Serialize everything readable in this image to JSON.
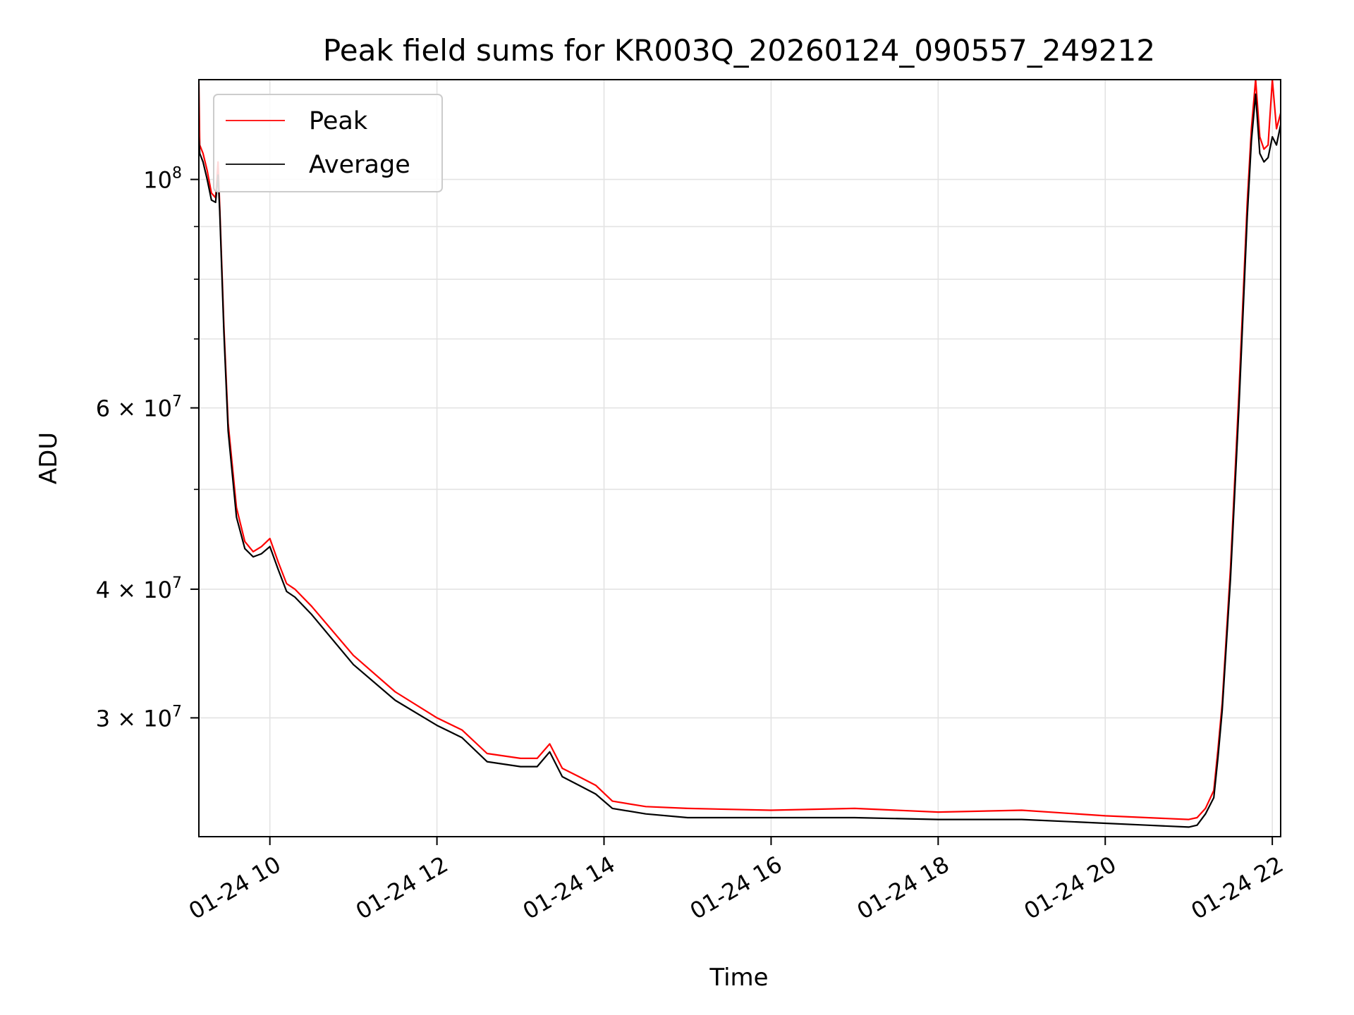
{
  "chart_data": {
    "type": "line",
    "title": "Peak field sums for KR003Q_20260124_090557_249212",
    "xlabel": "Time",
    "ylabel": "ADU",
    "xlim": [
      9.15,
      22.1
    ],
    "ylim": [
      23000000,
      125000000
    ],
    "yscale": "log",
    "grid": true,
    "legend": "top-left",
    "x_ticks": [
      {
        "value": 10,
        "label": "01-24 10"
      },
      {
        "value": 12,
        "label": "01-24 12"
      },
      {
        "value": 14,
        "label": "01-24 14"
      },
      {
        "value": 16,
        "label": "01-24 16"
      },
      {
        "value": 18,
        "label": "01-24 18"
      },
      {
        "value": 20,
        "label": "01-24 20"
      },
      {
        "value": 22,
        "label": "01-24 22"
      }
    ],
    "y_ticks": [
      {
        "value": 100000000,
        "base": "10",
        "exp": "8"
      },
      {
        "value": 60000000,
        "base": "6 × 10",
        "exp": "7"
      },
      {
        "value": 40000000,
        "base": "4 × 10",
        "exp": "7"
      },
      {
        "value": 30000000,
        "base": "3 × 10",
        "exp": "7"
      }
    ],
    "y_minor_ticks": [
      50000000,
      70000000,
      80000000,
      90000000
    ],
    "series": [
      {
        "name": "Peak",
        "color": "#ff0000",
        "x": [
          9.15,
          9.16,
          9.2,
          9.25,
          9.3,
          9.35,
          9.38,
          9.4,
          9.45,
          9.5,
          9.6,
          9.7,
          9.8,
          9.9,
          10.0,
          10.1,
          10.2,
          10.3,
          10.5,
          11.0,
          11.5,
          12.0,
          12.3,
          12.6,
          13.0,
          13.2,
          13.35,
          13.5,
          13.7,
          13.9,
          14.1,
          14.5,
          15.0,
          16.0,
          17.0,
          18.0,
          19.0,
          20.0,
          20.5,
          21.0,
          21.1,
          21.2,
          21.3,
          21.35,
          21.4,
          21.5,
          21.6,
          21.7,
          21.75,
          21.8,
          21.85,
          21.9,
          21.95,
          22.0,
          22.05,
          22.1
        ],
        "y": [
          124000000,
          108000000,
          106000000,
          102000000,
          97000000,
          96000000,
          104000000,
          94000000,
          72000000,
          58000000,
          48000000,
          44500000,
          43500000,
          44000000,
          44800000,
          42500000,
          40500000,
          40000000,
          38500000,
          34500000,
          31800000,
          30000000,
          29200000,
          27700000,
          27400000,
          27400000,
          28300000,
          26800000,
          26300000,
          25800000,
          24900000,
          24600000,
          24500000,
          24400000,
          24500000,
          24300000,
          24400000,
          24100000,
          24000000,
          23900000,
          24000000,
          24500000,
          25500000,
          28000000,
          31000000,
          42000000,
          62000000,
          95000000,
          112000000,
          125000000,
          110000000,
          107000000,
          108000000,
          125000000,
          112000000,
          116000000
        ]
      },
      {
        "name": "Average",
        "color": "#000000",
        "x": [
          9.15,
          9.16,
          9.2,
          9.25,
          9.3,
          9.35,
          9.38,
          9.4,
          9.45,
          9.5,
          9.6,
          9.7,
          9.8,
          9.9,
          10.0,
          10.1,
          10.2,
          10.3,
          10.5,
          11.0,
          11.5,
          12.0,
          12.3,
          12.6,
          13.0,
          13.2,
          13.35,
          13.5,
          13.7,
          13.9,
          14.1,
          14.5,
          15.0,
          16.0,
          17.0,
          18.0,
          19.0,
          20.0,
          20.5,
          21.0,
          21.1,
          21.2,
          21.3,
          21.35,
          21.4,
          21.5,
          21.6,
          21.7,
          21.75,
          21.8,
          21.85,
          21.9,
          21.95,
          22.0,
          22.05,
          22.1
        ],
        "y": [
          110000000,
          106000000,
          104000000,
          100000000,
          95500000,
          95000000,
          101000000,
          93000000,
          71000000,
          57000000,
          47000000,
          43800000,
          43000000,
          43300000,
          44000000,
          41800000,
          39800000,
          39300000,
          37800000,
          33800000,
          31200000,
          29500000,
          28700000,
          27200000,
          26900000,
          26900000,
          27800000,
          26300000,
          25800000,
          25300000,
          24500000,
          24200000,
          24000000,
          24000000,
          24000000,
          23900000,
          23900000,
          23700000,
          23600000,
          23500000,
          23600000,
          24200000,
          25100000,
          27500000,
          30500000,
          41000000,
          60000000,
          92000000,
          109000000,
          121000000,
          106000000,
          104000000,
          105000000,
          110000000,
          108000000,
          113000000
        ]
      }
    ]
  }
}
